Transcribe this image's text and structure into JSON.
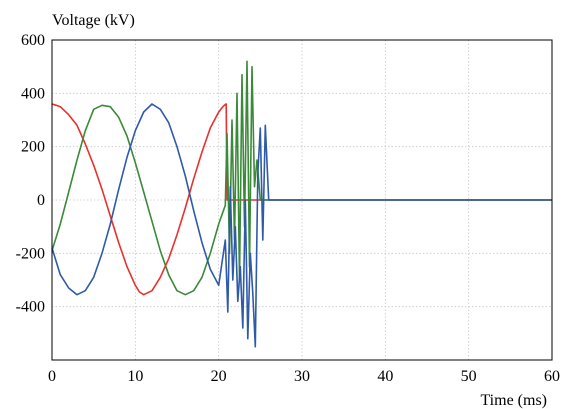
{
  "chart_data": {
    "type": "line",
    "title": "",
    "xlabel": "Time (ms)",
    "ylabel": "Voltage (kV)",
    "xlim": [
      0,
      60
    ],
    "ylim": [
      -600,
      600
    ],
    "x_ticks": [
      0,
      10,
      20,
      30,
      40,
      50,
      60
    ],
    "y_ticks": [
      600,
      400,
      200,
      0,
      -200,
      -400
    ],
    "grid": true,
    "legend": "none",
    "series": [
      {
        "color": "#e8302e",
        "x": [
          0,
          0.5,
          1,
          2,
          3,
          4,
          5,
          6,
          7,
          8,
          9,
          10,
          10.5,
          11,
          12,
          13,
          14,
          15,
          16,
          17,
          18,
          19,
          20,
          20.5,
          20.8,
          20.9,
          21.0,
          21.5,
          22,
          22.5,
          23,
          23.5,
          24,
          24.5,
          25,
          60
        ],
        "y": [
          360,
          355,
          350,
          320,
          280,
          210,
          130,
          40,
          -60,
          -160,
          -250,
          -320,
          -345,
          -355,
          -340,
          -290,
          -220,
          -130,
          -30,
          80,
          180,
          270,
          330,
          350,
          358,
          360,
          0,
          0,
          0,
          0,
          0,
          0,
          0,
          0,
          0,
          0
        ]
      },
      {
        "color": "#3a8a3a",
        "x": [
          0,
          1,
          2,
          3,
          4,
          5,
          6,
          7,
          8,
          9,
          10,
          11,
          12,
          13,
          14,
          15,
          16,
          17,
          18,
          19,
          20,
          20.8,
          21,
          21.3,
          21.6,
          21.9,
          22.2,
          22.5,
          22.8,
          23.1,
          23.4,
          23.7,
          24.0,
          24.3,
          24.6,
          25,
          60
        ],
        "y": [
          -190,
          -90,
          30,
          150,
          260,
          340,
          355,
          350,
          310,
          240,
          140,
          30,
          -80,
          -190,
          -280,
          -340,
          -355,
          -340,
          -290,
          -200,
          -90,
          -20,
          250,
          -200,
          300,
          -150,
          400,
          -300,
          470,
          -100,
          520,
          -250,
          500,
          50,
          150,
          0,
          0
        ]
      },
      {
        "color": "#2e5aa8",
        "x": [
          0,
          1,
          2,
          3,
          4,
          5,
          6,
          7,
          8,
          9,
          10,
          11,
          12,
          13,
          14,
          15,
          16,
          17,
          18,
          19,
          20,
          20.8,
          21.1,
          21.4,
          21.7,
          22,
          22.3,
          22.6,
          22.9,
          23.2,
          23.5,
          23.8,
          24.1,
          24.4,
          24.7,
          25,
          25.3,
          25.6,
          26,
          60
        ],
        "y": [
          -180,
          -280,
          -330,
          -355,
          -340,
          -290,
          -200,
          -90,
          40,
          160,
          260,
          330,
          360,
          340,
          290,
          200,
          90,
          -40,
          -160,
          -260,
          -320,
          -150,
          -420,
          50,
          -300,
          -100,
          -380,
          -250,
          -480,
          0,
          -520,
          -200,
          -350,
          -550,
          100,
          270,
          -150,
          280,
          0,
          0
        ]
      }
    ]
  }
}
